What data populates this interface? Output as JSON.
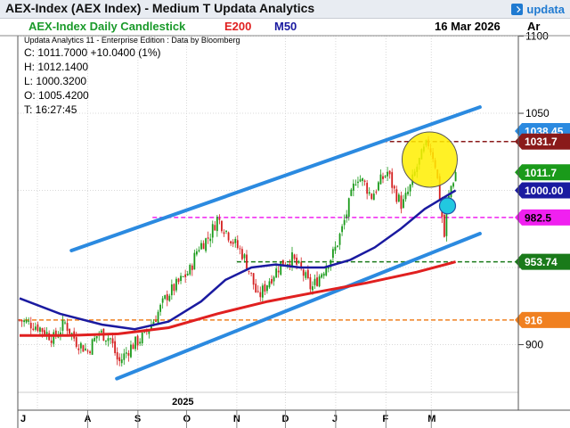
{
  "window": {
    "title": "AEX-Index (AEX Index) - Medium T  Updata Analytics",
    "logo_text": "updata"
  },
  "header": {
    "chart_title": "AEX-Index Daily Candlestick",
    "ema_label": "E200",
    "ma_label": "M50",
    "date": "16 Mar 2026",
    "side_label": "Ar",
    "subtitle": "Updata Analytics 11 - Enterprise Edition : Data by Bloomberg"
  },
  "ohlc": {
    "close": "C: 1011.7000  +10.0400 (1%)",
    "high": "H: 1012.1400",
    "low": "L: 1000.3200",
    "open": "O: 1005.4200",
    "time": "T: 16:27:45"
  },
  "colors": {
    "title_green": "#1a9a2a",
    "ema_red": "#e02020",
    "ma_blue": "#1a1aa0",
    "channel_blue": "#2b8ae0",
    "candle_red": "#d42020",
    "candle_green": "#1a9a1a",
    "orange_line": "#f08020",
    "magenta_line": "#f020f0",
    "darkred_line": "#8a1a1a",
    "green_dash": "#1a7a1a",
    "highlight_yellow": "#ffee00",
    "highlight_cyan": "#22c8e0"
  },
  "chart_data": {
    "type": "candlestick",
    "y_ticks": [
      "1100",
      "1050",
      "900"
    ],
    "ylim": [
      880,
      1105
    ],
    "x_ticks": [
      "J",
      "A",
      "S",
      "O",
      "N",
      "D",
      "J",
      "F",
      "M"
    ],
    "year_label": "2025",
    "price_tags": [
      {
        "label": "1038.45",
        "value": 1038.45,
        "color": "#2b8ae0",
        "text_color": "#ffffff"
      },
      {
        "label": "1031.7",
        "value": 1031.7,
        "color": "#8a1a1a",
        "text_color": "#ffffff"
      },
      {
        "label": "1011.7",
        "value": 1011.7,
        "color": "#1a9a1a",
        "text_color": "#ffffff"
      },
      {
        "label": "1000.00",
        "value": 1000.0,
        "color": "#1a1aa0",
        "text_color": "#ffffff"
      },
      {
        "label": "982.5",
        "value": 982.5,
        "color": "#f020f0",
        "text_color": "#000000"
      },
      {
        "label": "953.74",
        "value": 953.74,
        "color": "#1a7a1a",
        "text_color": "#ffffff"
      },
      {
        "label": "916",
        "value": 916,
        "color": "#f08020",
        "text_color": "#ffffff"
      }
    ],
    "levels": [
      {
        "name": "resistance",
        "value": 1031.7,
        "color": "#8a1a1a"
      },
      {
        "name": "magenta-level",
        "value": 982.5,
        "color": "#f020f0"
      },
      {
        "name": "green-level",
        "value": 953.74,
        "color": "#1a7a1a"
      },
      {
        "name": "orange-level",
        "value": 916,
        "color": "#f08020"
      }
    ],
    "channel": {
      "upper": [
        [
          "2025-07-22",
          961
        ],
        [
          "2026-03-31",
          1054
        ]
      ],
      "lower": [
        [
          "2025-08-19",
          878
        ],
        [
          "2026-03-31",
          972
        ]
      ]
    },
    "close_path": [
      [
        "2025-06-20",
        916
      ],
      [
        "2025-07-01",
        912
      ],
      [
        "2025-07-11",
        904
      ],
      [
        "2025-07-18",
        914
      ],
      [
        "2025-07-25",
        902
      ],
      [
        "2025-08-01",
        896
      ],
      [
        "2025-08-08",
        908
      ],
      [
        "2025-08-15",
        904
      ],
      [
        "2025-08-20",
        888
      ],
      [
        "2025-08-27",
        898
      ],
      [
        "2025-09-05",
        906
      ],
      [
        "2025-09-12",
        918
      ],
      [
        "2025-09-19",
        932
      ],
      [
        "2025-09-26",
        940
      ],
      [
        "2025-10-03",
        948
      ],
      [
        "2025-10-08",
        963
      ],
      [
        "2025-10-15",
        970
      ],
      [
        "2025-10-20",
        982
      ],
      [
        "2025-10-24",
        976
      ],
      [
        "2025-10-29",
        968
      ],
      [
        "2025-11-05",
        958
      ],
      [
        "2025-11-10",
        944
      ],
      [
        "2025-11-14",
        930
      ],
      [
        "2025-11-21",
        942
      ],
      [
        "2025-11-28",
        952
      ],
      [
        "2025-12-05",
        956
      ],
      [
        "2025-12-12",
        946
      ],
      [
        "2025-12-17",
        936
      ],
      [
        "2025-12-24",
        948
      ],
      [
        "2025-12-31",
        960
      ],
      [
        "2026-01-05",
        975
      ],
      [
        "2026-01-09",
        990
      ],
      [
        "2026-01-14",
        1010
      ],
      [
        "2026-01-19",
        1004
      ],
      [
        "2026-01-23",
        996
      ],
      [
        "2026-01-28",
        1005
      ],
      [
        "2026-02-02",
        1012
      ],
      [
        "2026-02-06",
        1000
      ],
      [
        "2026-02-11",
        990
      ],
      [
        "2026-02-16",
        1002
      ],
      [
        "2026-02-20",
        1015
      ],
      [
        "2026-02-24",
        1025
      ],
      [
        "2026-02-27",
        1031
      ],
      [
        "2026-03-03",
        1020
      ],
      [
        "2026-03-06",
        998
      ],
      [
        "2026-03-09",
        970
      ],
      [
        "2026-03-11",
        990
      ],
      [
        "2026-03-13",
        1002
      ],
      [
        "2026-03-16",
        1011.7
      ]
    ],
    "ma50": [
      [
        "2025-06-20",
        930
      ],
      [
        "2025-07-15",
        920
      ],
      [
        "2025-08-10",
        913
      ],
      [
        "2025-08-30",
        910
      ],
      [
        "2025-09-20",
        915
      ],
      [
        "2025-10-10",
        928
      ],
      [
        "2025-10-25",
        942
      ],
      [
        "2025-11-10",
        950
      ],
      [
        "2025-11-25",
        952
      ],
      [
        "2025-12-10",
        950
      ],
      [
        "2025-12-25",
        950
      ],
      [
        "2026-01-10",
        955
      ],
      [
        "2026-01-25",
        963
      ],
      [
        "2026-02-10",
        975
      ],
      [
        "2026-02-25",
        988
      ],
      [
        "2026-03-16",
        1000
      ]
    ],
    "ema200": [
      [
        "2025-06-20",
        906
      ],
      [
        "2025-07-20",
        906
      ],
      [
        "2025-08-20",
        907
      ],
      [
        "2025-09-20",
        911
      ],
      [
        "2025-10-20",
        920
      ],
      [
        "2025-11-20",
        928
      ],
      [
        "2025-12-20",
        934
      ],
      [
        "2026-01-20",
        940
      ],
      [
        "2026-02-20",
        947
      ],
      [
        "2026-03-16",
        953.74
      ]
    ],
    "highlight_circle": {
      "date": "2026-02-28",
      "value": 1020
    },
    "cyan_dot": {
      "date": "2026-03-11",
      "value": 990
    }
  }
}
